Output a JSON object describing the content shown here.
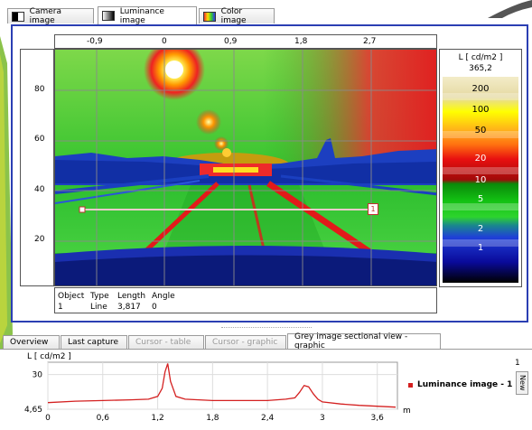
{
  "tabs": [
    {
      "label": "Camera image",
      "active": false
    },
    {
      "label": "Luminance image",
      "active": true
    },
    {
      "label": "Color image",
      "active": false
    }
  ],
  "image_view": {
    "x_ticks": [
      "-0,9",
      "0",
      "0,9",
      "1,8",
      "2,7"
    ],
    "y_ticks": [
      "80",
      "60",
      "40",
      "20"
    ]
  },
  "scale": {
    "unit": "L [ cd/m2 ]",
    "value": "365,2",
    "levels": [
      {
        "label": "200",
        "color": "#e5d9a2"
      },
      {
        "label": "100",
        "color": "#ffff00"
      },
      {
        "label": "50",
        "color": "#ff9a1a"
      },
      {
        "label": "20",
        "color": "#e81010"
      },
      {
        "label": "10",
        "color": "#12c012"
      },
      {
        "label": "5",
        "color": "#2dd42d"
      },
      {
        "label": "2",
        "color": "#1f3fd8"
      },
      {
        "label": "1",
        "color": "#0a0a9a"
      }
    ]
  },
  "object_table": {
    "headers": [
      "Object",
      "Type",
      "Length",
      "Angle"
    ],
    "row": [
      "1",
      "Line",
      "3,817",
      "0"
    ]
  },
  "line_marker": "1",
  "lower_tabs": [
    {
      "label": "Overview",
      "state": "normal"
    },
    {
      "label": "Last capture",
      "state": "normal"
    },
    {
      "label": "Cursor - table",
      "state": "dim"
    },
    {
      "label": "Cursor - graphic",
      "state": "dim"
    },
    {
      "label": "Grey image sectional view - graphic",
      "state": "active"
    }
  ],
  "section_plot": {
    "ylabel": "L [ cd/m2 ]",
    "y_ticks": [
      "30",
      "4,65"
    ],
    "x_ticks": [
      "0",
      "0,6",
      "1,2",
      "1,8",
      "2,4",
      "3",
      "3,6"
    ],
    "x_unit": "m",
    "legend": "Luminance image - 1",
    "side_label": "New",
    "side_number": "1"
  },
  "chart_data": {
    "type": "line",
    "title": "",
    "xlabel": "m",
    "ylabel": "L [ cd/m2 ]",
    "ylim": [
      4.65,
      39
    ],
    "xlim": [
      0,
      3.82
    ],
    "grid": true,
    "series": [
      {
        "name": "Luminance image - 1",
        "color": "#d42020",
        "x": [
          0,
          0.3,
          0.6,
          0.9,
          1.1,
          1.2,
          1.25,
          1.28,
          1.31,
          1.34,
          1.4,
          1.5,
          1.8,
          2.1,
          2.4,
          2.6,
          2.7,
          2.75,
          2.8,
          2.85,
          2.9,
          2.95,
          3.0,
          3.2,
          3.4,
          3.6,
          3.8
        ],
        "y": [
          9.5,
          10.5,
          11,
          11.5,
          12,
          14,
          20,
          32,
          38,
          25,
          14,
          12,
          11,
          11,
          11,
          12,
          13,
          17,
          22,
          21,
          16,
          12,
          10,
          8.5,
          7.5,
          6.8,
          6.2
        ]
      }
    ]
  }
}
